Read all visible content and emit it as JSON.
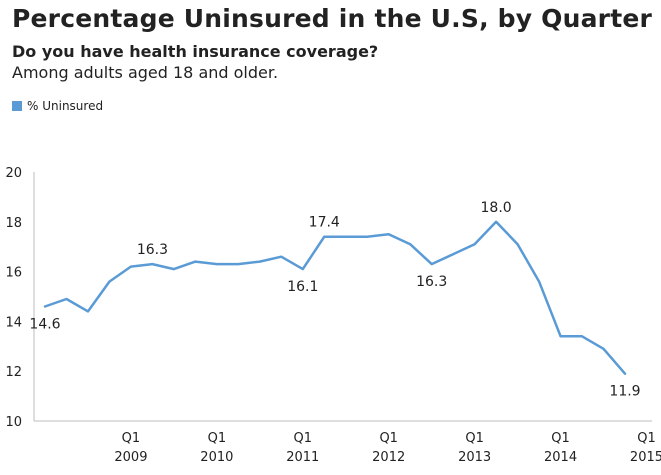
{
  "chart_data": {
    "type": "line",
    "title": "Percentage Uninsured in the U.S, by Quarter",
    "subtitle": "Do you have health insurance coverage?",
    "subtitle2": "Among adults aged 18 and older.",
    "legend_position": "top-left",
    "grid": false,
    "ylim": [
      10,
      20
    ],
    "y_ticks": [
      "10",
      "12",
      "14",
      "16",
      "18",
      "20"
    ],
    "x_ticks": [
      {
        "q": "Q1",
        "year": "2009"
      },
      {
        "q": "Q1",
        "year": "2010"
      },
      {
        "q": "Q1",
        "year": "2011"
      },
      {
        "q": "Q1",
        "year": "2012"
      },
      {
        "q": "Q1",
        "year": "2013"
      },
      {
        "q": "Q1",
        "year": "2014"
      },
      {
        "q": "Q1",
        "year": "2015"
      }
    ],
    "x_start": "2008 Q1",
    "series": [
      {
        "name": "% Uninsured",
        "color": "#5b9bd5",
        "values": [
          14.6,
          14.9,
          14.4,
          15.6,
          16.2,
          16.3,
          16.1,
          16.4,
          16.3,
          16.3,
          16.4,
          16.6,
          16.1,
          17.4,
          17.4,
          17.4,
          17.5,
          17.1,
          16.3,
          16.7,
          17.1,
          18.0,
          17.1,
          15.6,
          13.4,
          13.4,
          12.9,
          11.9
        ],
        "data_labels": [
          {
            "index": 0,
            "text": "14.6",
            "pos": "below"
          },
          {
            "index": 5,
            "text": "16.3",
            "pos": "above"
          },
          {
            "index": 12,
            "text": "16.1",
            "pos": "below"
          },
          {
            "index": 13,
            "text": "17.4",
            "pos": "above"
          },
          {
            "index": 18,
            "text": "16.3",
            "pos": "below"
          },
          {
            "index": 21,
            "text": "18.0",
            "pos": "above"
          },
          {
            "index": 27,
            "text": "11.9",
            "pos": "below"
          }
        ]
      }
    ]
  }
}
